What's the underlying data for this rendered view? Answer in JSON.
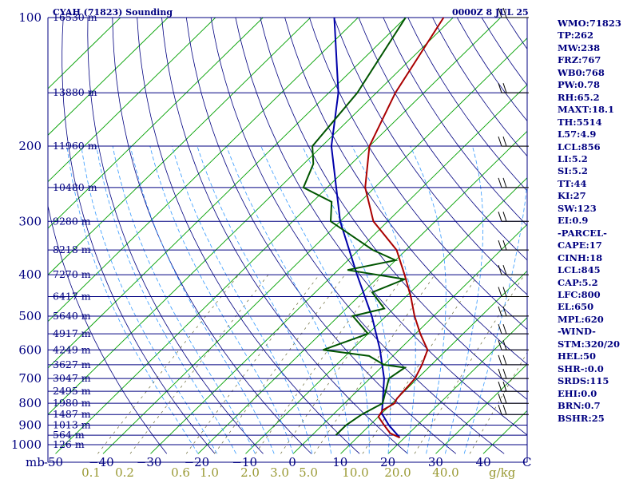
{
  "chart_data": {
    "type": "skew-t",
    "title": "CYAH (71823) Sounding",
    "valid_time": "0000Z  8 JUL 25",
    "pressure_levels": [
      {
        "p": 100,
        "h": "16530 m"
      },
      {
        "p": 150,
        "h": "13880 m"
      },
      {
        "p": 200,
        "h": "11960 m"
      },
      {
        "p": 250,
        "h": "10480 m"
      },
      {
        "p": 300,
        "h": "9280 m"
      },
      {
        "p": 350,
        "h": "8218 m"
      },
      {
        "p": 400,
        "h": "7270 m"
      },
      {
        "p": 450,
        "h": "6417 m"
      },
      {
        "p": 500,
        "h": "5640 m"
      },
      {
        "p": 550,
        "h": "4917 m"
      },
      {
        "p": 600,
        "h": "4249 m"
      },
      {
        "p": 650,
        "h": "3627 m"
      },
      {
        "p": 700,
        "h": "3047 m"
      },
      {
        "p": 750,
        "h": "2495 m"
      },
      {
        "p": 800,
        "h": "1980 m"
      },
      {
        "p": 850,
        "h": "1487 m"
      },
      {
        "p": 900,
        "h": "1013 m"
      },
      {
        "p": 950,
        "h": "564 m"
      },
      {
        "p": 1000,
        "h": "126 m"
      }
    ],
    "pressure_tick_labels": [
      {
        "p": 100,
        "text": "100"
      },
      {
        "p": 200,
        "text": "200"
      },
      {
        "p": 300,
        "text": "300"
      },
      {
        "p": 400,
        "text": "400"
      },
      {
        "p": 500,
        "text": "500"
      },
      {
        "p": 600,
        "text": "600"
      },
      {
        "p": 700,
        "text": "700"
      },
      {
        "p": 800,
        "text": "800"
      },
      {
        "p": 900,
        "text": "900"
      },
      {
        "p": 1000,
        "text": "1000"
      }
    ],
    "y_unit": "mb",
    "x_unit": "C",
    "temperature_ticks": [
      -50,
      -40,
      -30,
      -20,
      -10,
      0,
      10,
      20,
      30,
      40
    ],
    "temperature_tick_labels": [
      "-50",
      "−40",
      "−30",
      "−20",
      "−10",
      "0",
      "10",
      "20",
      "30",
      "40"
    ],
    "mixing_ratio_unit": "g/kg",
    "mixing_ratio_labels": [
      "0.1",
      "0.2",
      "0.6",
      "1.0",
      "2.0",
      "3.0",
      "5.0",
      "10.0",
      "20.0",
      "40.0"
    ],
    "temperature": [
      {
        "p": 963,
        "t": 19.0
      },
      {
        "p": 940,
        "t": 16.0
      },
      {
        "p": 900,
        "t": 13.0
      },
      {
        "p": 860,
        "t": 10.0
      },
      {
        "p": 830,
        "t": 9.5
      },
      {
        "p": 800,
        "t": 10.5
      },
      {
        "p": 780,
        "t": 10.0
      },
      {
        "p": 700,
        "t": 9.5
      },
      {
        "p": 650,
        "t": 8.0
      },
      {
        "p": 600,
        "t": 6.0
      },
      {
        "p": 550,
        "t": 1.0
      },
      {
        "p": 500,
        "t": -4.0
      },
      {
        "p": 450,
        "t": -9.0
      },
      {
        "p": 400,
        "t": -15.0
      },
      {
        "p": 350,
        "t": -22.0
      },
      {
        "p": 300,
        "t": -33.0
      },
      {
        "p": 250,
        "t": -42.0
      },
      {
        "p": 200,
        "t": -50.0
      },
      {
        "p": 150,
        "t": -56.0
      },
      {
        "p": 100,
        "t": -62.0
      }
    ],
    "dewpoint": [
      {
        "p": 950,
        "t": 5.0
      },
      {
        "p": 900,
        "t": 5.0
      },
      {
        "p": 850,
        "t": 6.0
      },
      {
        "p": 800,
        "t": 8.0
      },
      {
        "p": 700,
        "t": 4.0
      },
      {
        "p": 660,
        "t": 5.0
      },
      {
        "p": 650,
        "t": 0.0
      },
      {
        "p": 620,
        "t": -5.0
      },
      {
        "p": 600,
        "t": -16.0
      },
      {
        "p": 550,
        "t": -10.0
      },
      {
        "p": 500,
        "t": -17.0
      },
      {
        "p": 480,
        "t": -12.0
      },
      {
        "p": 440,
        "t": -18.0
      },
      {
        "p": 410,
        "t": -14.0
      },
      {
        "p": 390,
        "t": -28.0
      },
      {
        "p": 370,
        "t": -20.0
      },
      {
        "p": 350,
        "t": -27.0
      },
      {
        "p": 300,
        "t": -42.0
      },
      {
        "p": 270,
        "t": -46.0
      },
      {
        "p": 250,
        "t": -55.0
      },
      {
        "p": 220,
        "t": -58.0
      },
      {
        "p": 200,
        "t": -62.0
      },
      {
        "p": 150,
        "t": -64.0
      },
      {
        "p": 100,
        "t": -70.0
      }
    ],
    "parcel_path": [
      {
        "p": 963,
        "t": 19.0
      },
      {
        "p": 900,
        "t": 14.0
      },
      {
        "p": 845,
        "t": 10.0
      },
      {
        "p": 800,
        "t": 8.0
      },
      {
        "p": 700,
        "t": 3.0
      },
      {
        "p": 600,
        "t": -4.0
      },
      {
        "p": 500,
        "t": -13.0
      },
      {
        "p": 400,
        "t": -25.0
      },
      {
        "p": 300,
        "t": -40.0
      },
      {
        "p": 200,
        "t": -58.0
      },
      {
        "p": 150,
        "t": -68.0
      },
      {
        "p": 100,
        "t": -85.0
      }
    ],
    "wind_barb_pressures": [
      850,
      800,
      750,
      700,
      650,
      600,
      550,
      500,
      450,
      400,
      350,
      300,
      250,
      200,
      150,
      100
    ]
  },
  "indices": [
    "WMO:71823",
    "TP:262",
    "MW:238",
    "FRZ:767",
    "WB0:768",
    "PW:0.78",
    "RH:65.2",
    "MAXT:18.1",
    "TH:5514",
    "L57:4.9",
    "LCL:856",
    "LI:5.2",
    "SI:5.2",
    "TT:44",
    "KI:27",
    "SW:123",
    "EI:0.9",
    "-PARCEL-",
    "CAPE:17",
    "CINH:18",
    "LCL:845",
    "CAP:5.2",
    "LFC:800",
    "EL:650",
    "MPL:620",
    "-WIND-",
    "STM:320/20",
    "HEL:50",
    "SHR-:0.0",
    "SRDS:115",
    "EHI:0.0",
    "BRN:0.7",
    "BSHR:25"
  ],
  "colors": {
    "isobar": "#000080",
    "isotherm": "#00a000",
    "dry_adiabat": "#000080",
    "moist_adiabat": "#3399ff",
    "mixing_ratio": "#666633",
    "temperature": "#aa0000",
    "dewpoint": "#005500",
    "parcel": "#0000aa"
  }
}
